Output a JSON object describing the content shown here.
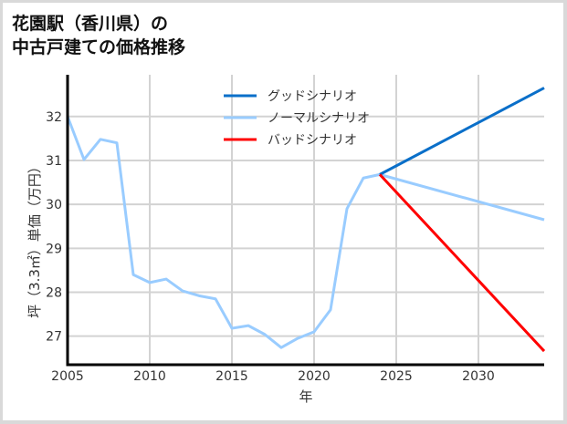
{
  "title_line1": "花園駅（香川県）の",
  "title_line2": "中古戸建ての価格推移",
  "chart_data": {
    "type": "line",
    "title": "花園駅（香川県）の中古戸建ての価格推移",
    "xlabel": "年",
    "ylabel": "坪（3.3㎡）単価（万円）",
    "xlim": [
      2005,
      2034
    ],
    "ylim": [
      26.35,
      32.95
    ],
    "xticks": [
      2005,
      2010,
      2015,
      2020,
      2025,
      2030
    ],
    "yticks": [
      27,
      28,
      29,
      30,
      31,
      32
    ],
    "grid": true,
    "legend_position": "upper center",
    "series": [
      {
        "name": "グッドシナリオ",
        "color": "#0a6fc9",
        "x": [
          2024,
          2034
        ],
        "values": [
          30.68,
          32.65
        ]
      },
      {
        "name": "ノーマルシナリオ",
        "color": "#99ccff",
        "x": [
          2005,
          2006,
          2007,
          2008,
          2009,
          2010,
          2011,
          2012,
          2013,
          2014,
          2015,
          2016,
          2017,
          2018,
          2019,
          2020,
          2021,
          2022,
          2023,
          2024,
          2034
        ],
        "values": [
          32.0,
          31.02,
          31.48,
          31.4,
          28.4,
          28.22,
          28.3,
          28.03,
          27.92,
          27.85,
          27.18,
          27.24,
          27.04,
          26.74,
          26.95,
          27.1,
          27.6,
          29.9,
          30.6,
          30.68,
          29.65
        ]
      },
      {
        "name": "バッドシナリオ",
        "color": "#ff0000",
        "x": [
          2024,
          2034
        ],
        "values": [
          30.68,
          26.66
        ]
      }
    ]
  }
}
